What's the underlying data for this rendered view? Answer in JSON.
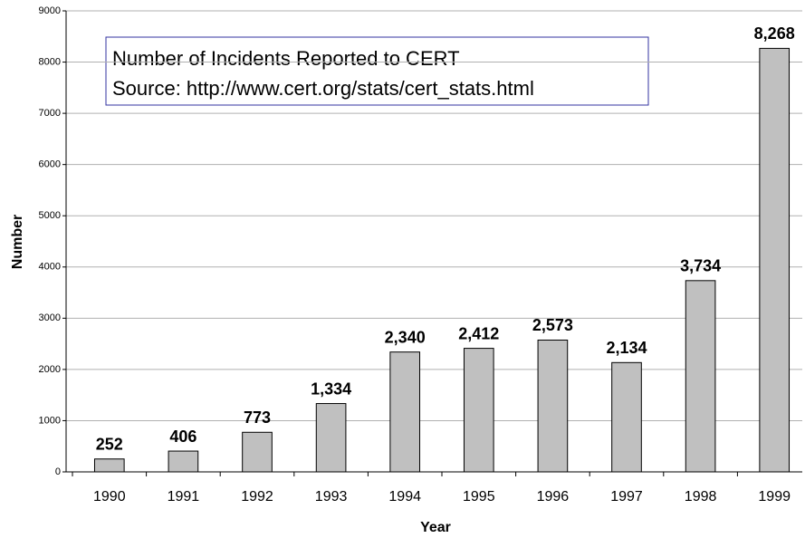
{
  "chart_data": {
    "type": "bar",
    "annotations": [
      "Number of Incidents Reported to CERT",
      "Source:  http://www.cert.org/stats/cert_stats.html"
    ],
    "x_label": "Year",
    "y_label": "Number",
    "categories": [
      "1990",
      "1991",
      "1992",
      "1993",
      "1994",
      "1995",
      "1996",
      "1997",
      "1998",
      "1999"
    ],
    "values": [
      252,
      406,
      773,
      1334,
      2340,
      2412,
      2573,
      2134,
      3734,
      8268
    ],
    "value_labels": [
      "252",
      "406",
      "773",
      "1,334",
      "2,340",
      "2,412",
      "2,573",
      "2,134",
      "3,734",
      "8,268"
    ],
    "color": "#c0c0c0",
    "ylim": [
      0,
      9000
    ],
    "yticks": [
      0,
      1000,
      2000,
      3000,
      4000,
      5000,
      6000,
      7000,
      8000,
      9000
    ],
    "grid": true
  }
}
